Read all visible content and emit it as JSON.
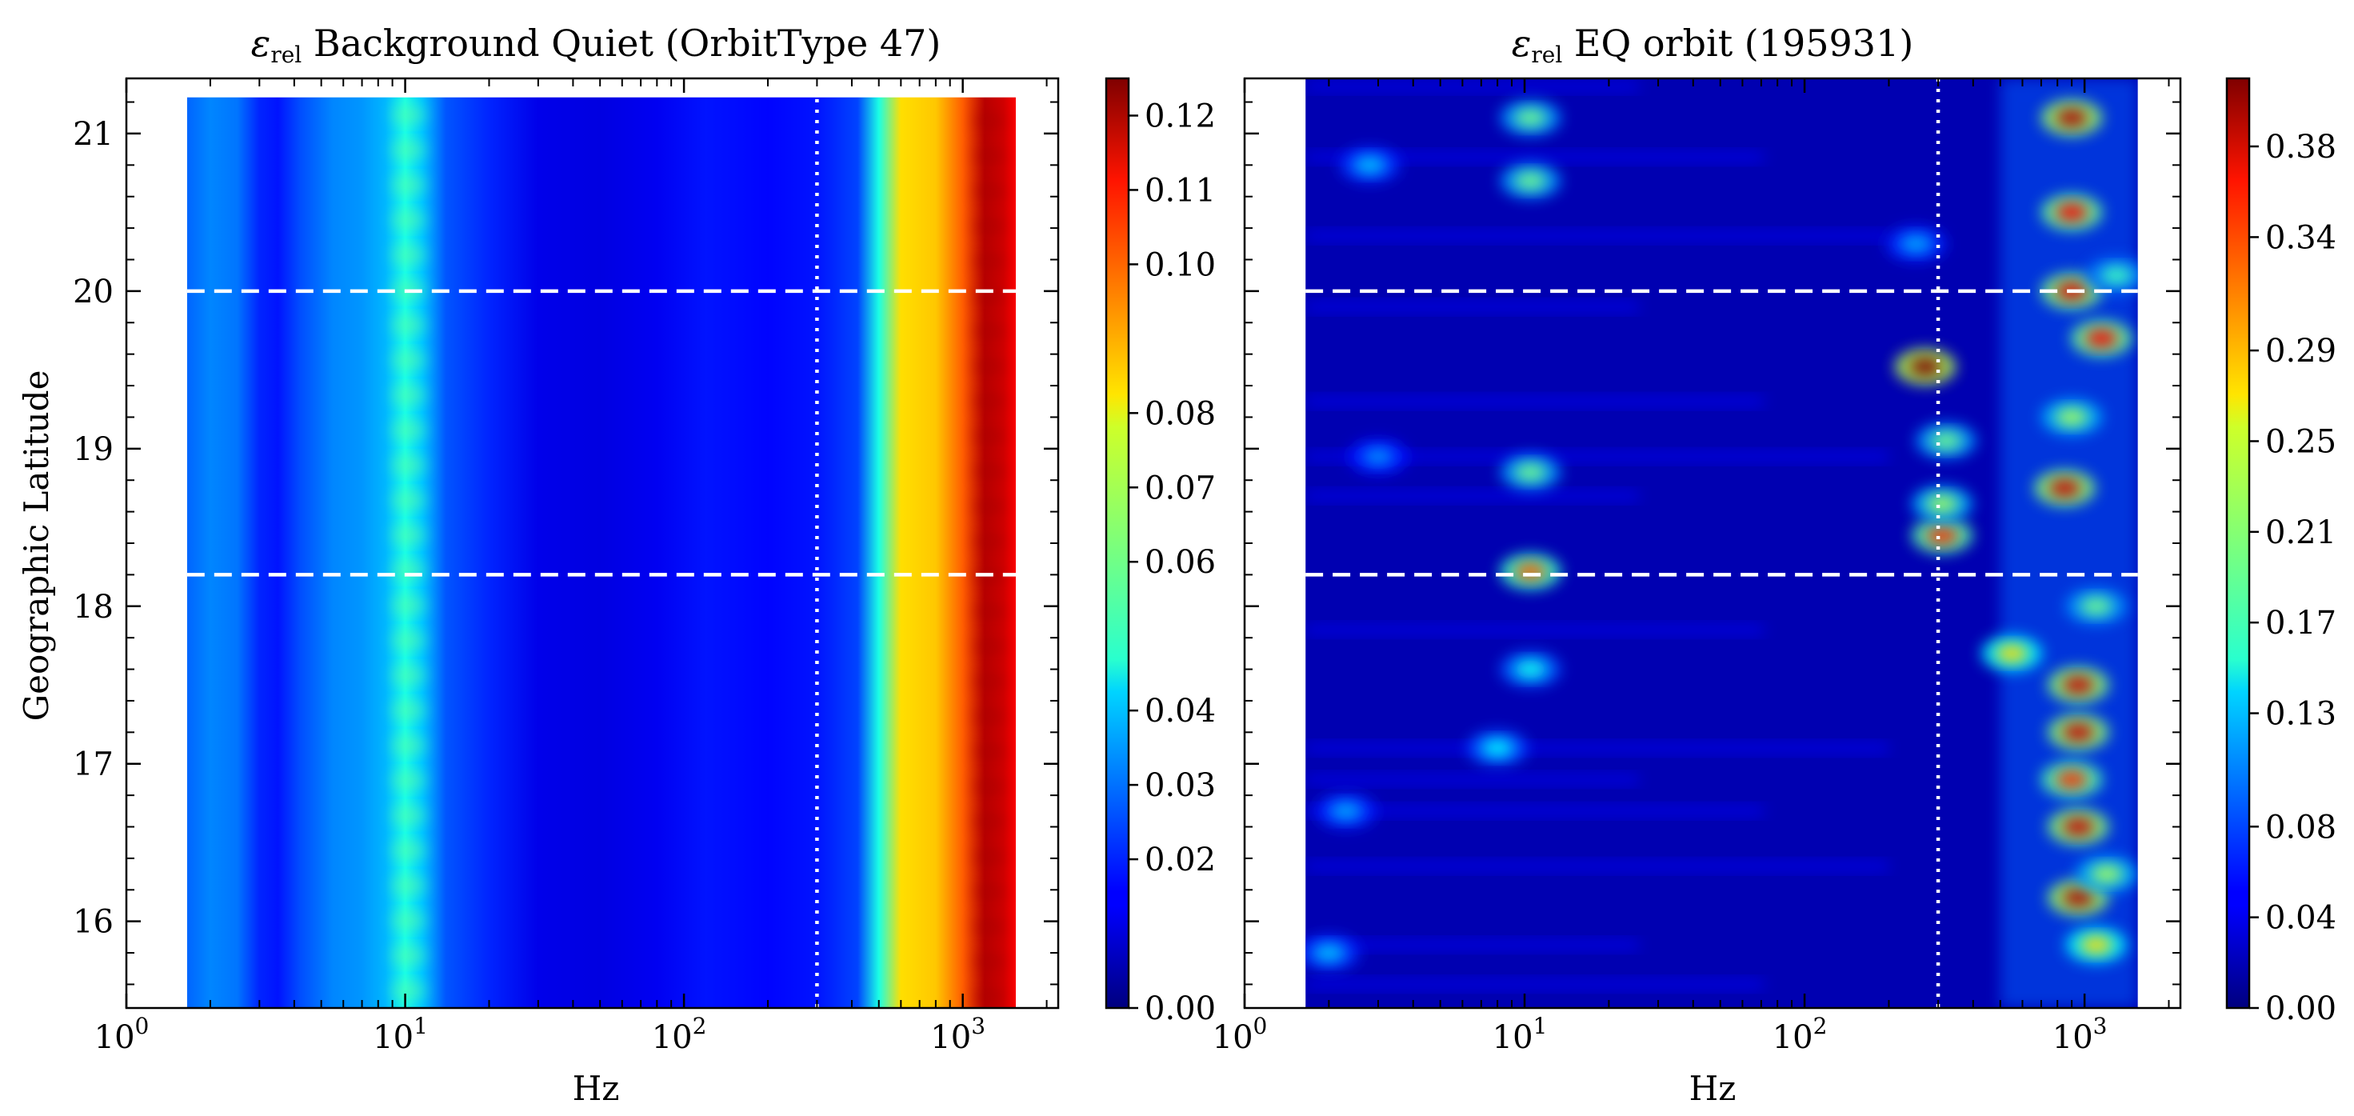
{
  "chart_data": [
    {
      "type": "heatmap",
      "title_symbol": "ε",
      "title_subscript": "rel",
      "title_text": " Background Quiet (OrbitType 47)",
      "xlabel": "Hz",
      "ylabel": "Geographic Latitude",
      "x_scale": "log",
      "xlim": [
        1,
        2200
      ],
      "ylim": [
        15.45,
        21.35
      ],
      "data_xrange": [
        1.65,
        1550
      ],
      "data_yrange": [
        15.45,
        21.23
      ],
      "x_ticks": [
        {
          "base": "10",
          "exp": "0"
        },
        {
          "base": "10",
          "exp": "1"
        },
        {
          "base": "10",
          "exp": "2"
        },
        {
          "base": "10",
          "exp": "3"
        }
      ],
      "y_ticks": [
        "16",
        "17",
        "18",
        "19",
        "20",
        "21"
      ],
      "colorbar": {
        "min": 0.0,
        "max": 0.125,
        "colormap": "jet",
        "ticks": [
          "0.00",
          "0.02",
          "0.03",
          "0.04",
          "0.06",
          "0.07",
          "0.08",
          "0.10",
          "0.11",
          "0.12"
        ]
      },
      "hlines": [
        20.0,
        18.2
      ],
      "vline_hz": 300,
      "frequency_profile": [
        {
          "hz": 1.65,
          "value": 0.028
        },
        {
          "hz": 2.0,
          "value": 0.032
        },
        {
          "hz": 2.5,
          "value": 0.03
        },
        {
          "hz": 3.0,
          "value": 0.02
        },
        {
          "hz": 3.5,
          "value": 0.018
        },
        {
          "hz": 4.2,
          "value": 0.025
        },
        {
          "hz": 5.5,
          "value": 0.032
        },
        {
          "hz": 7.0,
          "value": 0.034
        },
        {
          "hz": 8.5,
          "value": 0.038
        },
        {
          "hz": 10.0,
          "value": 0.05
        },
        {
          "hz": 11.5,
          "value": 0.04
        },
        {
          "hz": 14,
          "value": 0.026
        },
        {
          "hz": 20,
          "value": 0.02
        },
        {
          "hz": 30,
          "value": 0.013
        },
        {
          "hz": 50,
          "value": 0.012
        },
        {
          "hz": 80,
          "value": 0.014
        },
        {
          "hz": 120,
          "value": 0.018
        },
        {
          "hz": 200,
          "value": 0.016
        },
        {
          "hz": 300,
          "value": 0.018
        },
        {
          "hz": 420,
          "value": 0.024
        },
        {
          "hz": 500,
          "value": 0.05
        },
        {
          "hz": 600,
          "value": 0.082
        },
        {
          "hz": 800,
          "value": 0.085
        },
        {
          "hz": 1000,
          "value": 0.098
        },
        {
          "hz": 1200,
          "value": 0.118
        },
        {
          "hz": 1400,
          "value": 0.115
        },
        {
          "hz": 1550,
          "value": 0.11
        }
      ],
      "hotspots": []
    },
    {
      "type": "heatmap",
      "title_symbol": "ε",
      "title_subscript": "rel",
      "title_text": " EQ orbit (195931)",
      "xlabel": "Hz",
      "ylabel": "",
      "x_scale": "log",
      "xlim": [
        1,
        2200
      ],
      "ylim": [
        15.45,
        21.35
      ],
      "data_xrange": [
        1.65,
        1550
      ],
      "data_yrange": [
        15.45,
        21.35
      ],
      "x_ticks": [
        {
          "base": "10",
          "exp": "0"
        },
        {
          "base": "10",
          "exp": "1"
        },
        {
          "base": "10",
          "exp": "2"
        },
        {
          "base": "10",
          "exp": "3"
        }
      ],
      "y_ticks": [],
      "colorbar": {
        "min": 0.0,
        "max": 0.41,
        "colormap": "jet",
        "ticks": [
          "0.00",
          "0.04",
          "0.08",
          "0.13",
          "0.17",
          "0.21",
          "0.25",
          "0.29",
          "0.34",
          "0.38"
        ]
      },
      "hlines": [
        20.0,
        18.2
      ],
      "vline_hz": 300,
      "background_value": 0.02,
      "hotspots": [
        {
          "hz": 270,
          "lat": 19.52,
          "value": 0.41
        },
        {
          "hz": 900,
          "lat": 21.1,
          "value": 0.39
        },
        {
          "hz": 900,
          "lat": 20.5,
          "value": 0.36
        },
        {
          "hz": 900,
          "lat": 20.0,
          "value": 0.37
        },
        {
          "hz": 1150,
          "lat": 19.7,
          "value": 0.36
        },
        {
          "hz": 900,
          "lat": 19.2,
          "value": 0.22
        },
        {
          "hz": 850,
          "lat": 18.75,
          "value": 0.38
        },
        {
          "hz": 950,
          "lat": 17.5,
          "value": 0.38
        },
        {
          "hz": 950,
          "lat": 17.2,
          "value": 0.38
        },
        {
          "hz": 900,
          "lat": 16.9,
          "value": 0.34
        },
        {
          "hz": 950,
          "lat": 16.6,
          "value": 0.38
        },
        {
          "hz": 950,
          "lat": 16.15,
          "value": 0.39
        },
        {
          "hz": 1100,
          "lat": 15.85,
          "value": 0.27
        },
        {
          "hz": 550,
          "lat": 17.7,
          "value": 0.27
        },
        {
          "hz": 310,
          "lat": 18.45,
          "value": 0.34
        },
        {
          "hz": 310,
          "lat": 18.65,
          "value": 0.22
        },
        {
          "hz": 320,
          "lat": 19.05,
          "value": 0.2
        },
        {
          "hz": 10.5,
          "lat": 18.22,
          "value": 0.32
        },
        {
          "hz": 10.5,
          "lat": 18.85,
          "value": 0.2
        },
        {
          "hz": 10.5,
          "lat": 21.1,
          "value": 0.2
        },
        {
          "hz": 10.5,
          "lat": 20.7,
          "value": 0.2
        },
        {
          "hz": 10.5,
          "lat": 17.6,
          "value": 0.16
        },
        {
          "hz": 8,
          "lat": 17.1,
          "value": 0.15
        },
        {
          "hz": 2.8,
          "lat": 20.8,
          "value": 0.13
        },
        {
          "hz": 2.3,
          "lat": 16.7,
          "value": 0.12
        },
        {
          "hz": 2.0,
          "lat": 15.8,
          "value": 0.13
        },
        {
          "hz": 3,
          "lat": 18.95,
          "value": 0.11
        },
        {
          "hz": 250,
          "lat": 20.3,
          "value": 0.12
        },
        {
          "hz": 1300,
          "lat": 20.1,
          "value": 0.18
        },
        {
          "hz": 1100,
          "lat": 18.0,
          "value": 0.2
        },
        {
          "hz": 1200,
          "lat": 16.3,
          "value": 0.22
        }
      ]
    }
  ]
}
